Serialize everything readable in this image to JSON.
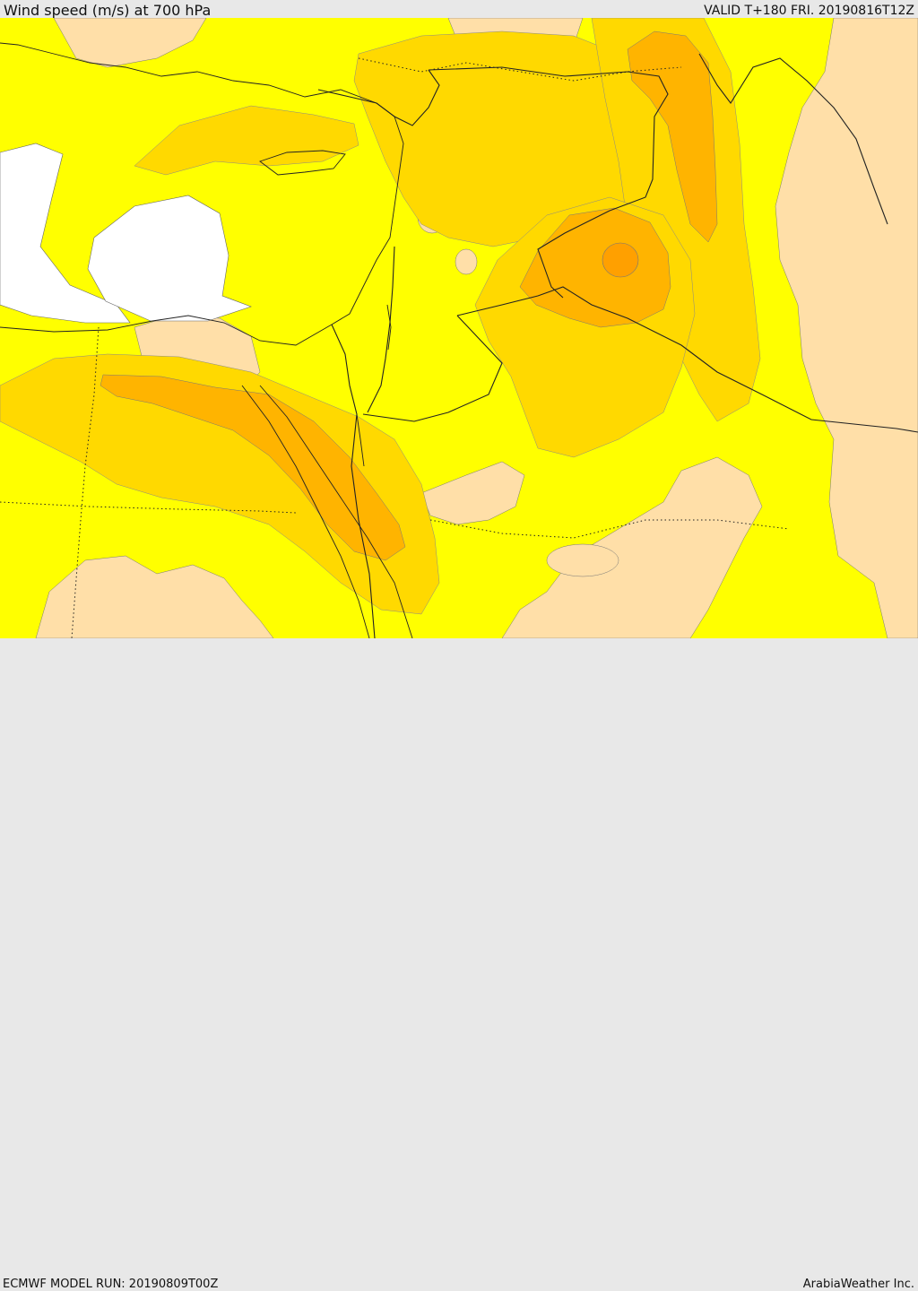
{
  "header": {
    "title": "Wind speed (m/s) at 700 hPa",
    "valid": "VALID T+180 FRI. 20190816T12Z"
  },
  "footer": {
    "model_run": "ECMWF MODEL RUN: 20190809T00Z",
    "credit": "ArabiaWeather Inc."
  },
  "map": {
    "region": "Eastern Mediterranean and Middle East",
    "colors": {
      "calm": "#ffffff",
      "light": "#ffdfa8",
      "moderate": "#ffff00",
      "fresh": "#ffd900",
      "strong": "#ffb400",
      "very_strong": "#ffa000"
    }
  }
}
